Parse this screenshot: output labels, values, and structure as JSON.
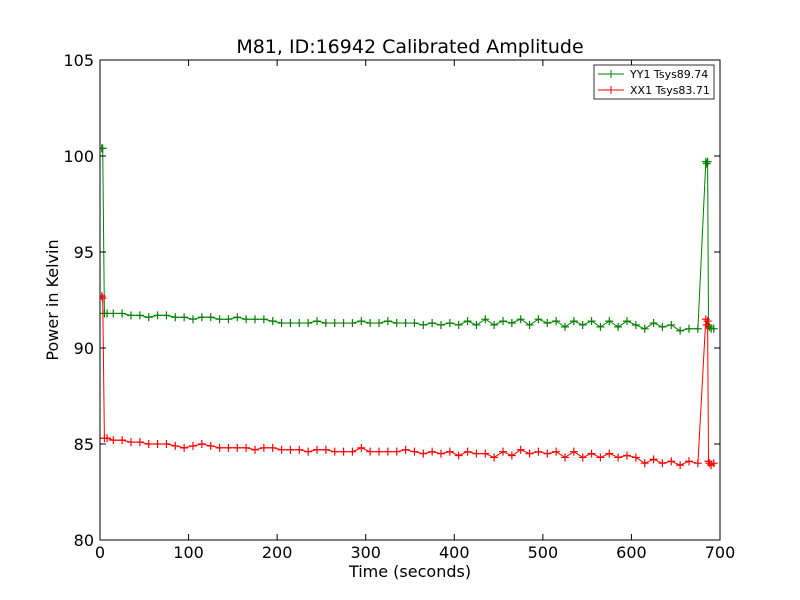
{
  "chart_data": {
    "type": "line",
    "title": "M81, ID:16942 Calibrated Amplitude",
    "xlabel": "Time (seconds)",
    "ylabel": "Power in Kelvin",
    "xlim": [
      0,
      700
    ],
    "ylim": [
      80,
      105
    ],
    "xticks": [
      "0",
      "100",
      "200",
      "300",
      "400",
      "500",
      "600",
      "700"
    ],
    "yticks": [
      "80",
      "85",
      "90",
      "95",
      "100",
      "105"
    ],
    "grid": false,
    "legend_position": "top-right",
    "marker": "plus",
    "series": [
      {
        "name": "YY1 Tsys89.74",
        "color": "#008000",
        "x": [
          2,
          3,
          5,
          8,
          15,
          25,
          35,
          45,
          55,
          65,
          75,
          85,
          95,
          105,
          115,
          125,
          135,
          145,
          155,
          165,
          175,
          185,
          195,
          205,
          215,
          225,
          235,
          245,
          255,
          265,
          275,
          285,
          295,
          305,
          315,
          325,
          335,
          345,
          355,
          365,
          375,
          385,
          395,
          405,
          415,
          425,
          435,
          445,
          455,
          465,
          475,
          485,
          495,
          505,
          515,
          525,
          535,
          545,
          555,
          565,
          575,
          585,
          595,
          605,
          615,
          625,
          635,
          645,
          655,
          665,
          675,
          684,
          685,
          686,
          687,
          688,
          690,
          693
        ],
        "y": [
          100.4,
          100.4,
          91.8,
          91.8,
          91.8,
          91.8,
          91.7,
          91.7,
          91.6,
          91.7,
          91.7,
          91.6,
          91.6,
          91.5,
          91.6,
          91.6,
          91.5,
          91.5,
          91.6,
          91.5,
          91.5,
          91.5,
          91.4,
          91.3,
          91.3,
          91.3,
          91.3,
          91.4,
          91.3,
          91.3,
          91.3,
          91.3,
          91.4,
          91.3,
          91.3,
          91.4,
          91.3,
          91.3,
          91.3,
          91.2,
          91.3,
          91.2,
          91.3,
          91.2,
          91.4,
          91.2,
          91.5,
          91.2,
          91.4,
          91.3,
          91.5,
          91.2,
          91.5,
          91.3,
          91.4,
          91.1,
          91.4,
          91.2,
          91.4,
          91.1,
          91.4,
          91.1,
          91.4,
          91.2,
          91.0,
          91.3,
          91.1,
          91.2,
          90.9,
          91.0,
          91.0,
          99.7,
          99.6,
          99.7,
          91.2,
          91.1,
          91.0,
          91.0
        ]
      },
      {
        "name": "XX1 Tsys83.71",
        "color": "#ff0000",
        "x": [
          2,
          3,
          5,
          8,
          15,
          25,
          35,
          45,
          55,
          65,
          75,
          85,
          95,
          105,
          115,
          125,
          135,
          145,
          155,
          165,
          175,
          185,
          195,
          205,
          215,
          225,
          235,
          245,
          255,
          265,
          275,
          285,
          295,
          305,
          315,
          325,
          335,
          345,
          355,
          365,
          375,
          385,
          395,
          405,
          415,
          425,
          435,
          445,
          455,
          465,
          475,
          485,
          495,
          505,
          515,
          525,
          535,
          545,
          555,
          565,
          575,
          585,
          595,
          605,
          615,
          625,
          635,
          645,
          655,
          665,
          675,
          684,
          685,
          686,
          687,
          688,
          690,
          693
        ],
        "y": [
          92.7,
          92.6,
          85.3,
          85.3,
          85.2,
          85.2,
          85.1,
          85.1,
          85.0,
          85.0,
          85.0,
          84.9,
          84.8,
          84.9,
          85.0,
          84.9,
          84.8,
          84.8,
          84.8,
          84.8,
          84.7,
          84.8,
          84.8,
          84.7,
          84.7,
          84.7,
          84.6,
          84.7,
          84.7,
          84.6,
          84.6,
          84.6,
          84.8,
          84.6,
          84.6,
          84.6,
          84.6,
          84.7,
          84.6,
          84.5,
          84.6,
          84.5,
          84.6,
          84.4,
          84.6,
          84.5,
          84.5,
          84.3,
          84.6,
          84.4,
          84.7,
          84.5,
          84.6,
          84.5,
          84.6,
          84.3,
          84.6,
          84.3,
          84.5,
          84.3,
          84.5,
          84.3,
          84.4,
          84.3,
          84.0,
          84.2,
          84.0,
          84.1,
          83.9,
          84.1,
          84.0,
          91.5,
          91.2,
          91.4,
          84.1,
          84.0,
          83.9,
          84.0
        ]
      }
    ]
  }
}
